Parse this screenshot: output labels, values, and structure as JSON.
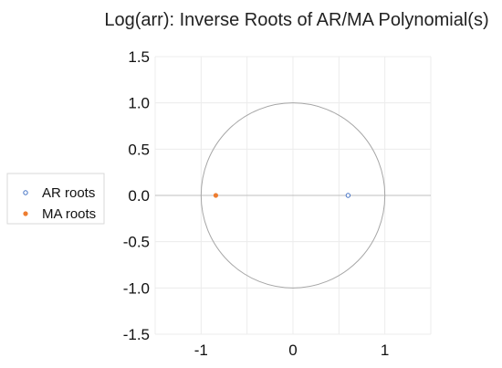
{
  "chart_data": {
    "type": "scatter",
    "title": "Log(arr): Inverse Roots of AR/MA Polynomial(s)",
    "xlabel": "",
    "ylabel": "",
    "xlim": [
      -1.5,
      1.5
    ],
    "ylim": [
      -1.5,
      1.5
    ],
    "x_ticks": [
      "-1",
      "0",
      "1"
    ],
    "y_ticks": [
      "1.5",
      "1.0",
      "0.5",
      "0.0",
      "-0.5",
      "-1.0",
      "-1.5"
    ],
    "grid": true,
    "unit_circle": true,
    "legend_position": "left",
    "series": [
      {
        "name": "AR roots",
        "marker": "hollow-circle",
        "color": "#4472c4",
        "points": [
          {
            "x": 0.6,
            "y": 0.0
          }
        ]
      },
      {
        "name": "MA roots",
        "marker": "filled-circle",
        "color": "#ed7d31",
        "points": [
          {
            "x": -0.84,
            "y": 0.0
          }
        ]
      }
    ]
  }
}
